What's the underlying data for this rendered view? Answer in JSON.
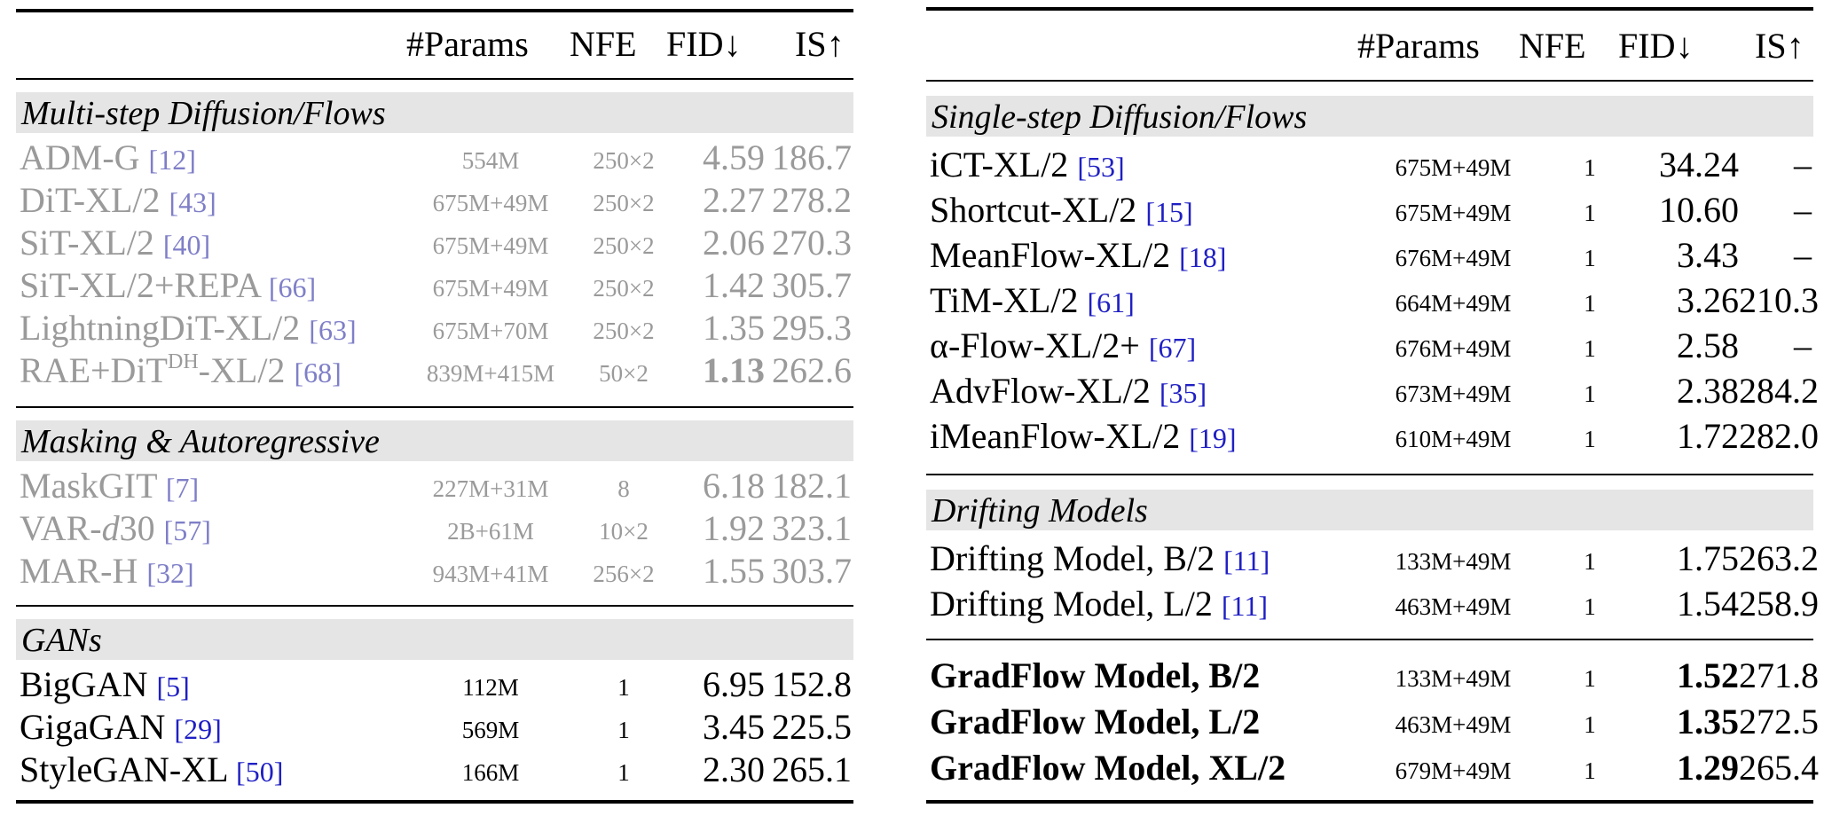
{
  "headers": {
    "params": "#Params",
    "nfe": "NFE",
    "fid": "FID↓",
    "is": "IS↑"
  },
  "left": {
    "multistep": {
      "title": "Multi-step Diffusion/Flows",
      "rows": [
        {
          "name": "ADM-G",
          "ref": "[12]",
          "params": "554M",
          "nfe": "250×2",
          "fid": "4.59",
          "is": "186.7"
        },
        {
          "name": "DiT-XL/2",
          "ref": "[43]",
          "params": "675M+49M",
          "nfe": "250×2",
          "fid": "2.27",
          "is": "278.2"
        },
        {
          "name": "SiT-XL/2",
          "ref": "[40]",
          "params": "675M+49M",
          "nfe": "250×2",
          "fid": "2.06",
          "is": "270.3"
        },
        {
          "name": "SiT-XL/2+REPA",
          "ref": "[66]",
          "params": "675M+49M",
          "nfe": "250×2",
          "fid": "1.42",
          "is": "305.7"
        },
        {
          "name": "LightningDiT-XL/2",
          "ref": "[63]",
          "params": "675M+70M",
          "nfe": "250×2",
          "fid": "1.35",
          "is": "295.3"
        },
        {
          "name_pre": "RAE+DiT",
          "name_sup": "DH",
          "name_post": "-XL/2",
          "ref": "[68]",
          "params": "839M+415M",
          "nfe": "50×2",
          "fid": "1.13",
          "is": "262.6"
        }
      ]
    },
    "masking": {
      "title": "Masking & Autoregressive",
      "rows": [
        {
          "name": "MaskGIT",
          "ref": "[7]",
          "params": "227M+31M",
          "nfe": "8",
          "fid": "6.18",
          "is": "182.1"
        },
        {
          "name_pre": "VAR-",
          "name_ital": "d",
          "name_post": "30",
          "ref": "[57]",
          "params": "2B+61M",
          "nfe": "10×2",
          "fid": "1.92",
          "is": "323.1"
        },
        {
          "name": "MAR-H",
          "ref": "[32]",
          "params": "943M+41M",
          "nfe": "256×2",
          "fid": "1.55",
          "is": "303.7"
        }
      ]
    },
    "gans": {
      "title": "GANs",
      "rows": [
        {
          "name": "BigGAN",
          "ref": "[5]",
          "params": "112M",
          "nfe": "1",
          "fid": "6.95",
          "is": "152.8"
        },
        {
          "name": "GigaGAN",
          "ref": "[29]",
          "params": "569M",
          "nfe": "1",
          "fid": "3.45",
          "is": "225.5"
        },
        {
          "name": "StyleGAN-XL",
          "ref": "[50]",
          "params": "166M",
          "nfe": "1",
          "fid": "2.30",
          "is": "265.1"
        }
      ]
    }
  },
  "right": {
    "singlestep": {
      "title": "Single-step Diffusion/Flows",
      "rows": [
        {
          "name": "iCT-XL/2",
          "ref": "[53]",
          "params": "675M+49M",
          "nfe": "1",
          "fid": "34.24",
          "is": "–"
        },
        {
          "name": "Shortcut-XL/2",
          "ref": "[15]",
          "params": "675M+49M",
          "nfe": "1",
          "fid": "10.60",
          "is": "–"
        },
        {
          "name": "MeanFlow-XL/2",
          "ref": "[18]",
          "params": "676M+49M",
          "nfe": "1",
          "fid": "3.43",
          "is": "–"
        },
        {
          "name": "TiM-XL/2",
          "ref": "[61]",
          "params": "664M+49M",
          "nfe": "1",
          "fid": "3.26",
          "is": "210.3"
        },
        {
          "name_alpha": "α",
          "name_post": "-Flow-XL/2+",
          "ref": "[67]",
          "params": "676M+49M",
          "nfe": "1",
          "fid": "2.58",
          "is": "–"
        },
        {
          "name": "AdvFlow-XL/2",
          "ref": "[35]",
          "params": "673M+49M",
          "nfe": "1",
          "fid": "2.38",
          "is": "284.2"
        },
        {
          "name": "iMeanFlow-XL/2",
          "ref": "[19]",
          "params": "610M+49M",
          "nfe": "1",
          "fid": "1.72",
          "is": "282.0"
        }
      ]
    },
    "drifting": {
      "title": "Drifting Models",
      "rows": [
        {
          "name": "Drifting Model, B/2",
          "ref": "[11]",
          "params": "133M+49M",
          "nfe": "1",
          "fid": "1.75",
          "is": "263.2"
        },
        {
          "name": "Drifting Model, L/2",
          "ref": "[11]",
          "params": "463M+49M",
          "nfe": "1",
          "fid": "1.54",
          "is": "258.9"
        }
      ]
    },
    "gradflow": {
      "rows": [
        {
          "name": "GradFlow Model, B/2",
          "params": "133M+49M",
          "nfe": "1",
          "fid": "1.52",
          "is": "271.8"
        },
        {
          "name": "GradFlow Model, L/2",
          "params": "463M+49M",
          "nfe": "1",
          "fid": "1.35",
          "is": "272.5"
        },
        {
          "name": "GradFlow Model, XL/2",
          "params": "679M+49M",
          "nfe": "1",
          "fid": "1.29",
          "is": "265.4"
        }
      ]
    }
  }
}
